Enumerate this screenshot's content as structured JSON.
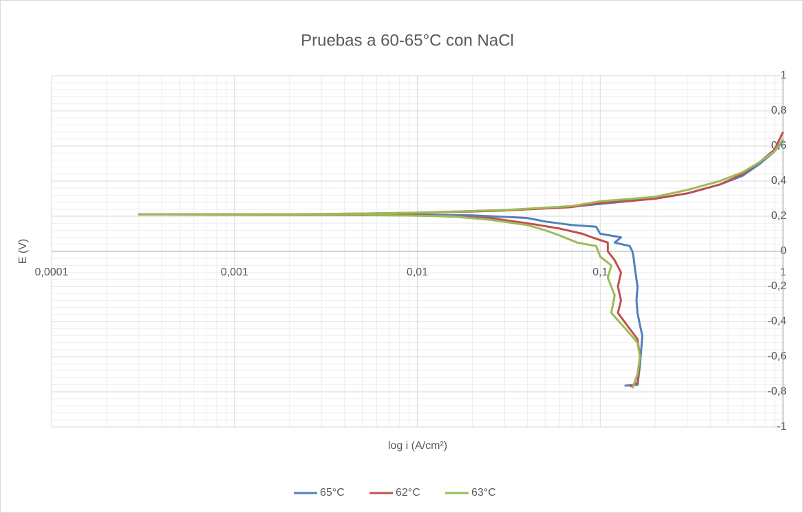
{
  "chart_data": {
    "type": "line",
    "title": "Pruebas a 60-65°C  con NaCl",
    "xlabel": "log i (A/cm²)",
    "ylabel": "E (V)",
    "xscale": "log",
    "grid": true,
    "legend": "bottom",
    "xlim": [
      0.0001,
      1
    ],
    "ylim": [
      -1,
      1
    ],
    "xticks": [
      {
        "value": 0.0001,
        "label": "0,0001"
      },
      {
        "value": 0.001,
        "label": "0,001"
      },
      {
        "value": 0.01,
        "label": "0,01"
      },
      {
        "value": 0.1,
        "label": "0,1"
      },
      1
    ],
    "yticks": [
      -1,
      {
        "value": -0.8,
        "label": "-0,8"
      },
      {
        "value": -0.6,
        "label": "-0,6"
      },
      {
        "value": -0.4,
        "label": "-0,4"
      },
      {
        "value": -0.2,
        "label": "-0,2"
      },
      0,
      {
        "value": 0.2,
        "label": "0,2"
      },
      {
        "value": 0.4,
        "label": "0,4"
      },
      {
        "value": 0.6,
        "label": "0,6"
      },
      {
        "value": 0.8,
        "label": "0,8"
      },
      1
    ],
    "series": [
      {
        "name": "65°C",
        "color": "#4f81bd",
        "x": [
          0.136,
          0.16,
          0.165,
          0.168,
          0.17,
          0.165,
          0.16,
          0.158,
          0.16,
          0.155,
          0.152,
          0.15,
          0.145,
          0.12,
          0.13,
          0.1,
          0.095,
          0.07,
          0.05,
          0.04,
          0.02,
          0.005,
          0.0003,
          0.003,
          0.01,
          0.03,
          0.07,
          0.1,
          0.2,
          0.3,
          0.45,
          0.6,
          0.75,
          0.9,
          1.0
        ],
        "values": [
          -0.765,
          -0.76,
          -0.65,
          -0.55,
          -0.48,
          -0.42,
          -0.35,
          -0.28,
          -0.2,
          -0.1,
          -0.03,
          0.0,
          0.03,
          0.05,
          0.08,
          0.1,
          0.14,
          0.15,
          0.17,
          0.19,
          0.205,
          0.21,
          0.21,
          0.212,
          0.22,
          0.235,
          0.255,
          0.27,
          0.3,
          0.33,
          0.38,
          0.43,
          0.5,
          0.57,
          0.63
        ]
      },
      {
        "name": "62°C",
        "color": "#c0504d",
        "x": [
          0.145,
          0.16,
          0.165,
          0.16,
          0.14,
          0.125,
          0.13,
          0.125,
          0.13,
          0.12,
          0.11,
          0.11,
          0.09,
          0.08,
          0.06,
          0.04,
          0.025,
          0.01,
          0.0003,
          0.005,
          0.01,
          0.03,
          0.07,
          0.1,
          0.2,
          0.3,
          0.45,
          0.6,
          0.75,
          0.9,
          1.0
        ],
        "values": [
          -0.77,
          -0.75,
          -0.6,
          -0.5,
          -0.42,
          -0.35,
          -0.28,
          -0.2,
          -0.12,
          -0.05,
          0.0,
          0.05,
          0.08,
          0.1,
          0.13,
          0.16,
          0.19,
          0.205,
          0.21,
          0.212,
          0.218,
          0.232,
          0.252,
          0.275,
          0.3,
          0.33,
          0.38,
          0.44,
          0.51,
          0.58,
          0.68
        ]
      },
      {
        "name": "63°C",
        "color": "#9bbb59",
        "x": [
          0.15,
          0.16,
          0.165,
          0.16,
          0.14,
          0.115,
          0.12,
          0.11,
          0.115,
          0.1,
          0.095,
          0.075,
          0.06,
          0.05,
          0.04,
          0.025,
          0.015,
          0.005,
          0.0003,
          0.003,
          0.01,
          0.03,
          0.07,
          0.1,
          0.2,
          0.3,
          0.45,
          0.6,
          0.75,
          0.9,
          1.0
        ],
        "values": [
          -0.78,
          -0.7,
          -0.6,
          -0.52,
          -0.45,
          -0.35,
          -0.25,
          -0.15,
          -0.08,
          -0.03,
          0.03,
          0.05,
          0.09,
          0.12,
          0.15,
          0.18,
          0.2,
          0.208,
          0.21,
          0.212,
          0.22,
          0.235,
          0.258,
          0.285,
          0.31,
          0.35,
          0.4,
          0.45,
          0.51,
          0.57,
          0.64
        ]
      }
    ]
  }
}
